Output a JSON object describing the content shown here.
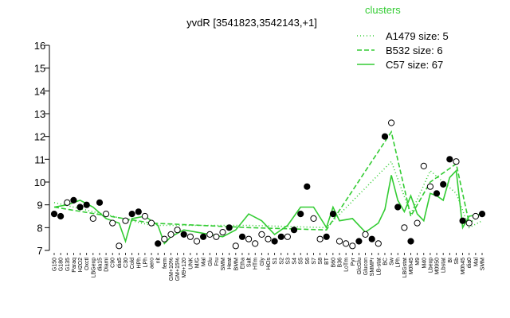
{
  "chart_data": {
    "type": "line",
    "title": "yvdR [3541823,3542143,+1]",
    "xlabel": "",
    "ylabel": "",
    "ylim": [
      7,
      16
    ],
    "yticks": [
      7,
      8,
      9,
      10,
      11,
      12,
      13,
      14,
      15,
      16
    ],
    "grid": false,
    "legend_position": "top-right",
    "legend": {
      "title": "clusters",
      "entries": [
        {
          "label": "A1479 size: 5",
          "style": "dotted",
          "color": "#33cc33"
        },
        {
          "label": "B532 size: 6",
          "style": "dashed",
          "color": "#33cc33"
        },
        {
          "label": "C57 size: 67",
          "style": "solid",
          "color": "#33cc33"
        }
      ]
    },
    "x_tick_labels": [
      "G150",
      "G180",
      "G135",
      "Paraq",
      "H2O2",
      "Oxctl",
      "LBGexp",
      "dia15",
      "Diami",
      "C90",
      "dia5",
      "C30",
      "Cold",
      "HPh",
      "LPh",
      "aero",
      "nit",
      "ferm",
      "GM+10%",
      "GM+15%",
      "M9+120",
      "UNK",
      "M/G",
      "Mal",
      "Glu",
      "Fru",
      "SMM",
      "Heat",
      "BMM",
      "Etha",
      "Salt",
      "HTm",
      "Gly",
      "HiOs",
      "S1",
      "S2",
      "S3",
      "S4",
      "S5",
      "S6",
      "S7",
      "S8",
      "BT",
      "B60",
      "B36",
      "LoTm",
      "Pyr",
      "GlcGlu",
      "Glucon",
      "SMMPr",
      "LB-stat",
      "BC",
      "Sw",
      "LPh",
      "LBGstat",
      "M0h45",
      "M9",
      "M40",
      "Lbexp",
      "M0950",
      "Lbstat",
      "BI",
      "Sb",
      "M0h45",
      "dia0",
      "Mal",
      "SMM"
    ],
    "series": [
      {
        "name": "A1479 size: 5",
        "style": "dotted",
        "x": [
          0,
          15,
          30,
          42,
          52,
          55,
          58,
          62,
          64,
          66
        ],
        "y": [
          9.1,
          8.1,
          8.1,
          8.0,
          10.9,
          8.6,
          10.5,
          9.5,
          8.0,
          8.3
        ]
      },
      {
        "name": "B532 size: 6",
        "style": "dashed",
        "x": [
          0,
          15,
          30,
          42,
          52,
          55,
          58,
          62,
          64,
          66
        ],
        "y": [
          8.9,
          8.2,
          8.0,
          7.9,
          12.2,
          8.5,
          10.0,
          10.8,
          8.2,
          8.6
        ]
      },
      {
        "name": "C57 size: 67",
        "style": "solid",
        "x": [
          0,
          2,
          4,
          6,
          8,
          10,
          11,
          12,
          14,
          16,
          17,
          18,
          20,
          22,
          24,
          26,
          28,
          30,
          32,
          34,
          36,
          38,
          40,
          42,
          43,
          44,
          46,
          48,
          50,
          51,
          52,
          53,
          54,
          55,
          56,
          57,
          58,
          59,
          60,
          61,
          62,
          63,
          64,
          66
        ],
        "y": [
          8.9,
          9.0,
          9.2,
          8.9,
          8.4,
          8.2,
          7.4,
          8.4,
          8.5,
          8.1,
          7.3,
          7.6,
          7.9,
          7.8,
          7.7,
          7.6,
          7.9,
          8.6,
          8.3,
          7.7,
          8.1,
          8.9,
          8.9,
          8.0,
          8.9,
          8.3,
          8.4,
          7.8,
          8.2,
          8.8,
          10.3,
          9.2,
          8.7,
          9.4,
          8.6,
          8.3,
          9.5,
          9.4,
          9.2,
          10.2,
          10.5,
          8.0,
          8.5,
          8.6
        ]
      }
    ],
    "points": [
      {
        "x": 0,
        "y": 8.6,
        "fill": "black"
      },
      {
        "x": 1,
        "y": 8.5,
        "fill": "black"
      },
      {
        "x": 2,
        "y": 9.1,
        "fill": "white"
      },
      {
        "x": 3,
        "y": 9.2,
        "fill": "black"
      },
      {
        "x": 4,
        "y": 8.9,
        "fill": "black"
      },
      {
        "x": 5,
        "y": 9.0,
        "fill": "black"
      },
      {
        "x": 6,
        "y": 8.4,
        "fill": "white"
      },
      {
        "x": 7,
        "y": 9.1,
        "fill": "black"
      },
      {
        "x": 8,
        "y": 8.6,
        "fill": "white"
      },
      {
        "x": 9,
        "y": 8.2,
        "fill": "white"
      },
      {
        "x": 10,
        "y": 7.2,
        "fill": "white"
      },
      {
        "x": 11,
        "y": 8.3,
        "fill": "white"
      },
      {
        "x": 12,
        "y": 8.6,
        "fill": "black"
      },
      {
        "x": 13,
        "y": 8.7,
        "fill": "black"
      },
      {
        "x": 14,
        "y": 8.5,
        "fill": "white"
      },
      {
        "x": 15,
        "y": 8.2,
        "fill": "white"
      },
      {
        "x": 16,
        "y": 7.3,
        "fill": "black"
      },
      {
        "x": 17,
        "y": 7.5,
        "fill": "white"
      },
      {
        "x": 18,
        "y": 7.7,
        "fill": "white"
      },
      {
        "x": 19,
        "y": 7.9,
        "fill": "white"
      },
      {
        "x": 20,
        "y": 7.7,
        "fill": "black"
      },
      {
        "x": 21,
        "y": 7.6,
        "fill": "white"
      },
      {
        "x": 22,
        "y": 7.4,
        "fill": "white"
      },
      {
        "x": 23,
        "y": 7.6,
        "fill": "black"
      },
      {
        "x": 24,
        "y": 7.7,
        "fill": "white"
      },
      {
        "x": 25,
        "y": 7.6,
        "fill": "white"
      },
      {
        "x": 26,
        "y": 7.8,
        "fill": "white"
      },
      {
        "x": 27,
        "y": 8.0,
        "fill": "black"
      },
      {
        "x": 28,
        "y": 7.2,
        "fill": "white"
      },
      {
        "x": 29,
        "y": 7.6,
        "fill": "black"
      },
      {
        "x": 30,
        "y": 7.5,
        "fill": "white"
      },
      {
        "x": 31,
        "y": 7.3,
        "fill": "white"
      },
      {
        "x": 32,
        "y": 7.7,
        "fill": "white"
      },
      {
        "x": 33,
        "y": 7.5,
        "fill": "white"
      },
      {
        "x": 34,
        "y": 7.4,
        "fill": "black"
      },
      {
        "x": 35,
        "y": 7.6,
        "fill": "black"
      },
      {
        "x": 36,
        "y": 7.6,
        "fill": "white"
      },
      {
        "x": 37,
        "y": 7.9,
        "fill": "black"
      },
      {
        "x": 38,
        "y": 8.6,
        "fill": "black"
      },
      {
        "x": 39,
        "y": 9.8,
        "fill": "black"
      },
      {
        "x": 40,
        "y": 8.4,
        "fill": "white"
      },
      {
        "x": 41,
        "y": 7.5,
        "fill": "white"
      },
      {
        "x": 42,
        "y": 7.6,
        "fill": "black"
      },
      {
        "x": 43,
        "y": 8.6,
        "fill": "black"
      },
      {
        "x": 44,
        "y": 7.4,
        "fill": "white"
      },
      {
        "x": 45,
        "y": 7.3,
        "fill": "white"
      },
      {
        "x": 46,
        "y": 7.2,
        "fill": "white"
      },
      {
        "x": 47,
        "y": 7.4,
        "fill": "black"
      },
      {
        "x": 48,
        "y": 7.7,
        "fill": "white"
      },
      {
        "x": 49,
        "y": 7.5,
        "fill": "black"
      },
      {
        "x": 50,
        "y": 7.3,
        "fill": "white"
      },
      {
        "x": 51,
        "y": 12.0,
        "fill": "black"
      },
      {
        "x": 52,
        "y": 12.6,
        "fill": "white"
      },
      {
        "x": 53,
        "y": 8.9,
        "fill": "black"
      },
      {
        "x": 54,
        "y": 8.0,
        "fill": "white"
      },
      {
        "x": 55,
        "y": 7.4,
        "fill": "black"
      },
      {
        "x": 56,
        "y": 8.2,
        "fill": "white"
      },
      {
        "x": 57,
        "y": 10.7,
        "fill": "white"
      },
      {
        "x": 58,
        "y": 9.8,
        "fill": "white"
      },
      {
        "x": 59,
        "y": 9.5,
        "fill": "black"
      },
      {
        "x": 60,
        "y": 9.9,
        "fill": "black"
      },
      {
        "x": 61,
        "y": 11.0,
        "fill": "black"
      },
      {
        "x": 62,
        "y": 10.9,
        "fill": "white"
      },
      {
        "x": 63,
        "y": 8.3,
        "fill": "black"
      },
      {
        "x": 64,
        "y": 8.2,
        "fill": "white"
      },
      {
        "x": 65,
        "y": 8.5,
        "fill": "white"
      },
      {
        "x": 66,
        "y": 8.6,
        "fill": "black"
      }
    ]
  }
}
